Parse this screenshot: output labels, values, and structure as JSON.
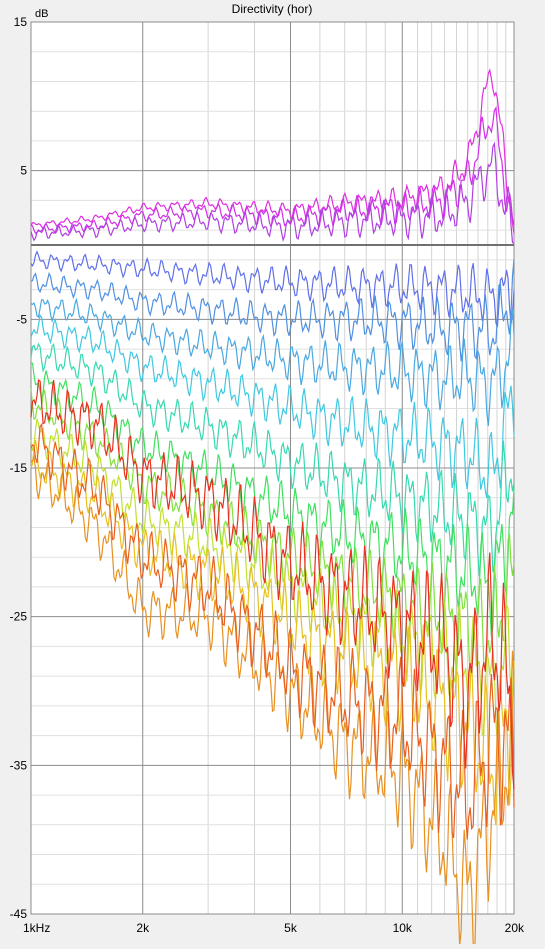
{
  "chart_data": {
    "type": "line",
    "title": "Directivity (hor)",
    "ylabel": "dB",
    "xlabel": "",
    "x_scale": "log",
    "xlim": [
      1000,
      20000
    ],
    "ylim": [
      -45,
      15
    ],
    "x_ticks": [
      {
        "value": 1000,
        "label": "1kHz"
      },
      {
        "value": 2000,
        "label": "2k"
      },
      {
        "value": 5000,
        "label": "5k"
      },
      {
        "value": 10000,
        "label": "10k"
      },
      {
        "value": 20000,
        "label": "20k"
      }
    ],
    "y_ticks": [
      {
        "value": 15,
        "label": "15"
      },
      {
        "value": 5,
        "label": "5"
      },
      {
        "value": -5,
        "label": "-5"
      },
      {
        "value": -15,
        "label": "-15"
      },
      {
        "value": -25,
        "label": "-25"
      },
      {
        "value": -35,
        "label": "-35"
      },
      {
        "value": -45,
        "label": "-45"
      }
    ],
    "reference_line": 0,
    "grid": true,
    "x": [
      1000,
      1500,
      2000,
      3000,
      4000,
      5000,
      7000,
      10000,
      13000,
      15000,
      17500,
      20000
    ],
    "series": [
      {
        "color": "#e030e0",
        "values": [
          1.3,
          1.8,
          2.5,
          2.8,
          2.5,
          2.3,
          2.8,
          3.0,
          3.8,
          5.5,
          12.0,
          1.0
        ]
      },
      {
        "color": "#d030e8",
        "values": [
          1.0,
          1.3,
          2.0,
          2.3,
          2.0,
          1.8,
          2.3,
          2.5,
          3.0,
          4.5,
          9.0,
          0.8
        ]
      },
      {
        "color": "#b040e0",
        "values": [
          0.8,
          1.0,
          1.4,
          1.6,
          1.4,
          1.2,
          1.6,
          1.8,
          2.0,
          3.0,
          5.5,
          0.6
        ]
      },
      {
        "color": "#6070e8",
        "values": [
          -1.0,
          -1.3,
          -1.6,
          -2.0,
          -2.3,
          -2.5,
          -2.7,
          -2.8,
          -3.0,
          -3.2,
          -3.5,
          -3.0
        ]
      },
      {
        "color": "#5090e0",
        "values": [
          -2.5,
          -3.0,
          -3.8,
          -4.3,
          -4.8,
          -5.0,
          -5.0,
          -5.2,
          -5.6,
          -5.5,
          -5.8,
          -3.2
        ]
      },
      {
        "color": "#4aa8e0",
        "values": [
          -4.0,
          -4.8,
          -6.0,
          -6.8,
          -7.3,
          -7.8,
          -8.2,
          -8.5,
          -9.0,
          -8.8,
          -9.5,
          -7.0
        ]
      },
      {
        "color": "#40c8e0",
        "values": [
          -5.5,
          -6.5,
          -8.2,
          -9.3,
          -10.2,
          -11.0,
          -12.0,
          -12.8,
          -13.5,
          -14.0,
          -15.5,
          -10.0
        ]
      },
      {
        "color": "#38d8b0",
        "values": [
          -7.2,
          -8.5,
          -10.8,
          -12.2,
          -13.5,
          -14.6,
          -16.0,
          -17.0,
          -18.0,
          -18.5,
          -19.5,
          -14.0
        ]
      },
      {
        "color": "#40e060",
        "values": [
          -9.0,
          -10.8,
          -13.5,
          -15.3,
          -16.8,
          -18.0,
          -19.5,
          -20.5,
          -21.5,
          -22.0,
          -23.0,
          -18.0
        ]
      },
      {
        "color": "#80e040",
        "values": [
          -10.5,
          -13.0,
          -16.0,
          -18.0,
          -19.8,
          -21.0,
          -22.5,
          -24.0,
          -25.0,
          -25.5,
          -26.0,
          -22.0
        ]
      },
      {
        "color": "#c0e030",
        "values": [
          -12.5,
          -15.0,
          -18.5,
          -20.0,
          -21.5,
          -23.0,
          -25.0,
          -26.5,
          -27.5,
          -28.0,
          -30.0,
          -27.0
        ]
      },
      {
        "color": "#e8c020",
        "values": [
          -14.5,
          -17.0,
          -20.5,
          -22.0,
          -23.5,
          -25.5,
          -27.5,
          -29.0,
          -31.0,
          -32.5,
          -35.0,
          -31.0
        ]
      },
      {
        "color": "#e89020",
        "values": [
          -15.0,
          -19.0,
          -24.5,
          -25.0,
          -28.0,
          -30.0,
          -33.5,
          -35.5,
          -40.0,
          -44.0,
          -38.0,
          -33.0
        ]
      },
      {
        "color": "#e86020",
        "values": [
          -13.0,
          -16.5,
          -21.0,
          -23.0,
          -26.0,
          -28.5,
          -30.5,
          -32.0,
          -35.0,
          -37.0,
          -33.0,
          -34.0
        ]
      },
      {
        "color": "#e83020",
        "values": [
          -10.5,
          -12.0,
          -15.5,
          -17.0,
          -19.5,
          -21.5,
          -23.5,
          -25.5,
          -27.0,
          -30.0,
          -26.0,
          -31.0
        ]
      }
    ]
  }
}
